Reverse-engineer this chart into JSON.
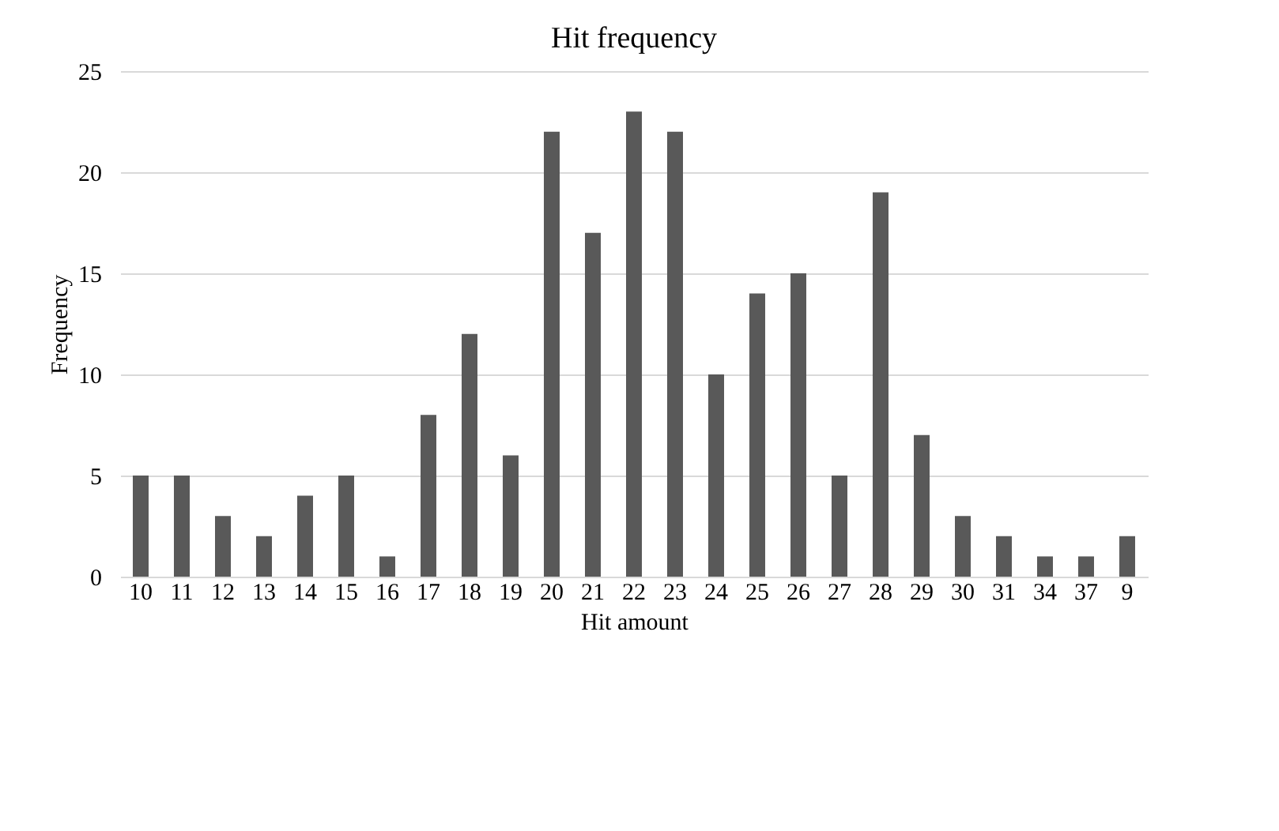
{
  "chart_data": {
    "type": "bar",
    "title": "Hit frequency",
    "xlabel": "Hit amount",
    "ylabel": "Frequency",
    "categories": [
      "10",
      "11",
      "12",
      "13",
      "14",
      "15",
      "16",
      "17",
      "18",
      "19",
      "20",
      "21",
      "22",
      "23",
      "24",
      "25",
      "26",
      "27",
      "28",
      "29",
      "30",
      "31",
      "34",
      "37",
      "9"
    ],
    "values": [
      5,
      5,
      3,
      2,
      4,
      5,
      1,
      8,
      12,
      6,
      22,
      17,
      23,
      22,
      10,
      14,
      15,
      5,
      19,
      7,
      3,
      2,
      1,
      1,
      2
    ],
    "color": "#595959",
    "ylim": [
      0,
      25
    ],
    "yticks": [
      0,
      5,
      10,
      15,
      20,
      25
    ],
    "grid": "y"
  }
}
